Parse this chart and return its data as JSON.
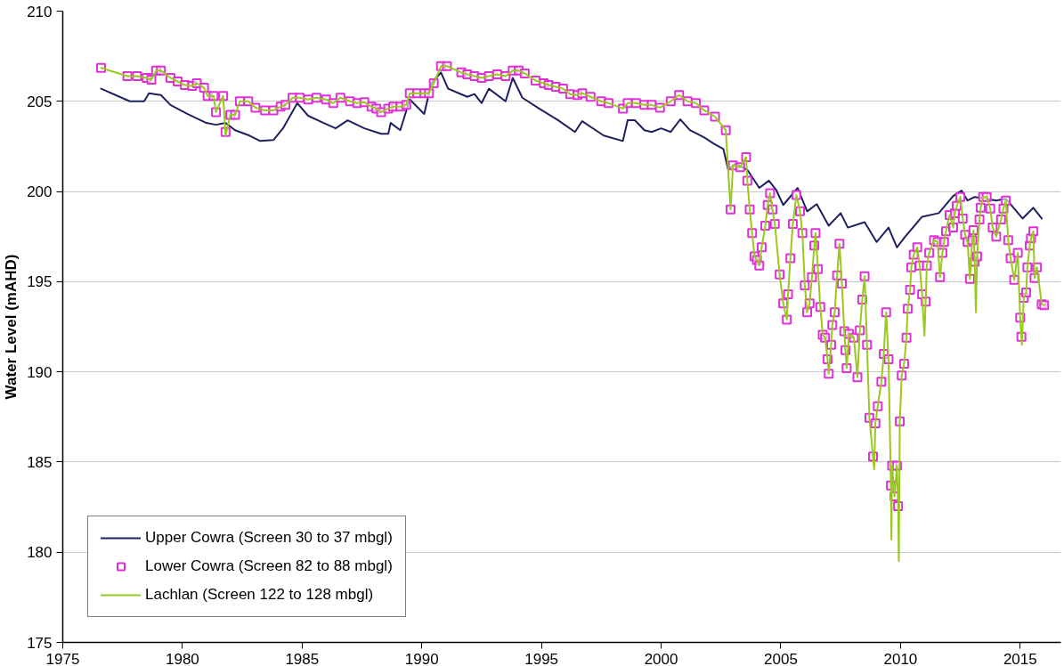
{
  "chart_data": {
    "type": "line",
    "ylabel": "Water Level (mAHD)",
    "xlim": [
      1975,
      2016.7
    ],
    "xticks": [
      1975,
      1980,
      1985,
      1990,
      1995,
      2000,
      2005,
      2010,
      2015
    ],
    "ylim": [
      175,
      210
    ],
    "yticks": [
      175,
      180,
      185,
      190,
      195,
      200,
      205,
      210
    ],
    "grid": "y",
    "legend": "bottom left",
    "series": [
      {
        "name": "Upper Cowra (Screen 30 to 37 mbgl)",
        "color": "#1f2060",
        "marker": "none",
        "x": [
          1976.6,
          1977.8,
          1978.4,
          1978.6,
          1979.1,
          1979.5,
          1980.2,
          1981.0,
          1981.4,
          1981.8,
          1982.2,
          1982.8,
          1983.25,
          1983.8,
          1984.2,
          1984.8,
          1985.25,
          1985.9,
          1986.4,
          1986.9,
          1987.6,
          1988.3,
          1988.6,
          1988.7,
          1989.1,
          1989.5,
          1990.1,
          1990.4,
          1990.8,
          1991.1,
          1991.9,
          1992.2,
          1992.5,
          1992.8,
          1993.5,
          1993.8,
          1994.2,
          1994.9,
          1995.7,
          1996.4,
          1996.7,
          1997.6,
          1998.4,
          1998.6,
          1998.9,
          1999.3,
          1999.6,
          2000.0,
          2000.4,
          2000.8,
          2001.2,
          2001.8,
          2002.2,
          2002.6,
          2002.8,
          2003.1,
          2003.6,
          2004.1,
          2004.5,
          2004.8,
          2005.1,
          2005.7,
          2006.1,
          2006.5,
          2007.0,
          2007.5,
          2007.8,
          2008.5,
          2009.0,
          2009.5,
          2009.85,
          2010.2,
          2010.9,
          2011.6,
          2012.2,
          2012.55,
          2012.8,
          2013.1,
          2014.0,
          2014.4,
          2015.1,
          2015.55,
          2015.9
        ],
        "values": [
          205.7,
          205.0,
          205.0,
          205.45,
          205.35,
          204.8,
          204.3,
          203.8,
          203.7,
          203.8,
          203.4,
          203.1,
          202.8,
          202.85,
          203.5,
          204.9,
          204.2,
          203.8,
          203.5,
          203.95,
          203.5,
          203.2,
          203.2,
          203.8,
          203.4,
          205.1,
          204.3,
          206.0,
          206.6,
          205.7,
          205.25,
          205.4,
          204.9,
          205.7,
          205.0,
          206.3,
          205.2,
          204.6,
          203.95,
          203.3,
          203.9,
          203.1,
          202.8,
          203.95,
          203.95,
          203.4,
          203.3,
          203.5,
          203.3,
          204.0,
          203.4,
          203.0,
          202.65,
          202.35,
          201.2,
          201.55,
          201.2,
          200.2,
          200.6,
          200.1,
          199.25,
          200.2,
          198.9,
          199.3,
          198.1,
          198.8,
          198.0,
          198.3,
          197.2,
          198.0,
          196.9,
          197.5,
          198.6,
          198.8,
          199.75,
          200.05,
          199.5,
          199.7,
          199.5,
          199.6,
          198.5,
          199.1,
          198.5
        ]
      },
      {
        "name": "Lower Cowra (Screen 82 to 88 mbgl)",
        "type": "scatter",
        "color": "#e030d8",
        "marker": "square",
        "x": [
          1976.6,
          1977.7,
          1978.1,
          1978.5,
          1978.7,
          1978.9,
          1979.1,
          1979.5,
          1979.8,
          1980.1,
          1980.4,
          1980.6,
          1980.9,
          1981.05,
          1981.3,
          1981.4,
          1981.7,
          1981.8,
          1982.0,
          1982.2,
          1982.4,
          1982.75,
          1983.05,
          1983.45,
          1983.8,
          1984.1,
          1984.3,
          1984.6,
          1984.9,
          1985.25,
          1985.6,
          1986.0,
          1986.3,
          1986.6,
          1987.0,
          1987.3,
          1987.6,
          1987.9,
          1988.1,
          1988.3,
          1988.6,
          1988.8,
          1989.1,
          1989.35,
          1989.5,
          1989.8,
          1990.1,
          1990.3,
          1990.5,
          1990.8,
          1991.05,
          1991.65,
          1991.9,
          1992.2,
          1992.5,
          1992.8,
          1993.15,
          1993.5,
          1993.8,
          1994.05,
          1994.3,
          1994.75,
          1995.1,
          1995.3,
          1995.6,
          1995.9,
          1996.2,
          1996.5,
          1996.7,
          1997.05,
          1997.5,
          1997.8,
          1998.4,
          1998.6,
          1998.95,
          1999.3,
          1999.6,
          1999.95,
          2000.4,
          2000.75,
          2001.1,
          2001.45,
          2001.8,
          2002.25,
          2002.7,
          2002.9,
          2003.0,
          2003.3,
          2003.55,
          2003.6,
          2003.7,
          2003.8,
          2003.9,
          2004.0,
          2004.1,
          2004.2,
          2004.35,
          2004.45,
          2004.55,
          2004.65,
          2004.75,
          2004.95,
          2005.1,
          2005.25,
          2005.3,
          2005.4,
          2005.5,
          2005.65,
          2005.8,
          2005.9,
          2006.0,
          2006.1,
          2006.2,
          2006.3,
          2006.4,
          2006.45,
          2006.55,
          2006.65,
          2006.75,
          2006.85,
          2006.95,
          2007.0,
          2007.1,
          2007.15,
          2007.25,
          2007.35,
          2007.45,
          2007.55,
          2007.65,
          2007.7,
          2007.75,
          2007.85,
          2008.05,
          2008.2,
          2008.3,
          2008.4,
          2008.5,
          2008.6,
          2008.7,
          2008.85,
          2008.95,
          2009.05,
          2009.2,
          2009.3,
          2009.4,
          2009.5,
          2009.6,
          2009.65,
          2009.75,
          2009.85,
          2009.9,
          2009.97,
          2010.05,
          2010.15,
          2010.25,
          2010.3,
          2010.4,
          2010.45,
          2010.55,
          2010.7,
          2010.8,
          2010.9,
          2011.05,
          2011.1,
          2011.2,
          2011.4,
          2011.55,
          2011.65,
          2011.75,
          2011.82,
          2011.9,
          2012.05,
          2012.2,
          2012.27,
          2012.35,
          2012.5,
          2012.6,
          2012.7,
          2012.8,
          2012.9,
          2013.0,
          2013.05,
          2013.1,
          2013.2,
          2013.3,
          2013.35,
          2013.45,
          2013.6,
          2013.75,
          2013.85,
          2014.0,
          2014.2,
          2014.3,
          2014.4,
          2014.5,
          2014.6,
          2014.75,
          2014.9,
          2015.0,
          2015.05,
          2015.15,
          2015.25,
          2015.3,
          2015.4,
          2015.45,
          2015.55,
          2015.6,
          2015.7,
          2015.9,
          2016.0
        ],
        "values": [
          206.85,
          206.4,
          206.4,
          206.3,
          206.2,
          206.7,
          206.7,
          206.3,
          206.1,
          205.9,
          205.85,
          206.0,
          205.75,
          205.3,
          205.3,
          204.4,
          205.3,
          203.3,
          204.25,
          204.25,
          205.0,
          205.0,
          204.65,
          204.5,
          204.5,
          204.7,
          204.8,
          205.2,
          205.2,
          205.1,
          205.2,
          205.1,
          204.9,
          205.2,
          205.0,
          204.9,
          204.95,
          204.7,
          204.6,
          204.4,
          204.6,
          204.7,
          204.7,
          204.8,
          205.45,
          205.45,
          205.45,
          205.45,
          206.0,
          206.95,
          206.95,
          206.6,
          206.5,
          206.4,
          206.3,
          206.4,
          206.5,
          206.4,
          206.7,
          206.7,
          206.55,
          206.15,
          206.0,
          205.9,
          205.8,
          205.7,
          205.4,
          205.35,
          205.45,
          205.25,
          205.0,
          204.9,
          204.6,
          204.9,
          204.9,
          204.8,
          204.8,
          204.65,
          205.0,
          205.35,
          205.0,
          204.9,
          204.5,
          204.15,
          203.4,
          199.0,
          201.45,
          201.35,
          201.9,
          200.6,
          199.0,
          197.7,
          196.4,
          196.2,
          195.9,
          196.9,
          198.1,
          199.25,
          199.9,
          199.0,
          198.2,
          195.4,
          193.8,
          192.9,
          194.3,
          196.3,
          198.2,
          199.8,
          198.9,
          197.7,
          194.8,
          193.3,
          193.8,
          195.25,
          197.0,
          197.7,
          195.7,
          193.6,
          192.05,
          191.9,
          190.7,
          189.9,
          191.5,
          192.6,
          193.3,
          195.35,
          197.1,
          194.9,
          192.25,
          191.2,
          190.2,
          192.1,
          191.9,
          189.7,
          192.3,
          194.0,
          195.3,
          191.5,
          187.45,
          185.3,
          187.15,
          188.1,
          189.45,
          191.0,
          193.3,
          190.7,
          183.7,
          184.8,
          183.1,
          184.8,
          182.55,
          187.25,
          189.8,
          190.45,
          191.9,
          193.5,
          194.55,
          195.8,
          196.5,
          196.9,
          195.9,
          194.3,
          193.9,
          195.9,
          196.6,
          197.3,
          197.2,
          195.25,
          196.6,
          197.2,
          197.8,
          198.7,
          198.0,
          198.8,
          199.2,
          199.7,
          198.5,
          197.6,
          197.2,
          195.15,
          197.3,
          197.85,
          196.1,
          196.4,
          198.45,
          199.1,
          199.7,
          199.7,
          199.05,
          198.0,
          197.5,
          198.45,
          199.05,
          199.5,
          197.3,
          196.3,
          195.1,
          196.6,
          193.0,
          191.95,
          194.1,
          194.4,
          195.8,
          197.0,
          197.4,
          197.8,
          195.2,
          195.8,
          193.75,
          193.7
        ]
      },
      {
        "name": "Lachlan (Screen 122 to 128 mbgl)",
        "color": "#9ac81e",
        "marker": "none",
        "x": [
          1976.6,
          1977.7,
          1978.1,
          1978.5,
          1978.7,
          1978.9,
          1979.1,
          1979.5,
          1979.8,
          1980.1,
          1980.4,
          1980.6,
          1980.9,
          1981.05,
          1981.3,
          1981.4,
          1981.7,
          1981.8,
          1982.0,
          1982.2,
          1982.4,
          1982.75,
          1983.05,
          1983.45,
          1983.8,
          1984.1,
          1984.3,
          1984.6,
          1984.9,
          1985.25,
          1985.6,
          1986.0,
          1986.3,
          1986.6,
          1987.0,
          1987.3,
          1987.6,
          1987.9,
          1988.1,
          1988.3,
          1988.6,
          1988.8,
          1989.1,
          1989.35,
          1989.5,
          1989.8,
          1990.1,
          1990.3,
          1990.5,
          1990.8,
          1991.05,
          1991.65,
          1991.9,
          1992.2,
          1992.5,
          1992.8,
          1993.15,
          1993.5,
          1993.8,
          1994.05,
          1994.3,
          1994.75,
          1995.1,
          1995.3,
          1995.6,
          1995.9,
          1996.2,
          1996.5,
          1996.7,
          1997.05,
          1997.5,
          1997.8,
          1998.4,
          1998.6,
          1998.95,
          1999.3,
          1999.6,
          1999.95,
          2000.4,
          2000.75,
          2001.1,
          2001.45,
          2001.8,
          2002.25,
          2002.7,
          2002.9,
          2003.0,
          2003.3,
          2003.55,
          2003.6,
          2003.7,
          2003.8,
          2003.9,
          2004.0,
          2004.1,
          2004.2,
          2004.35,
          2004.45,
          2004.55,
          2004.65,
          2004.75,
          2004.95,
          2005.1,
          2005.25,
          2005.3,
          2005.4,
          2005.5,
          2005.65,
          2005.8,
          2005.9,
          2006.0,
          2006.1,
          2006.2,
          2006.3,
          2006.4,
          2006.45,
          2006.55,
          2006.65,
          2006.75,
          2006.85,
          2006.95,
          2007.0,
          2007.1,
          2007.15,
          2007.25,
          2007.35,
          2007.45,
          2007.55,
          2007.65,
          2007.7,
          2007.75,
          2007.85,
          2008.05,
          2008.2,
          2008.3,
          2008.4,
          2008.5,
          2008.6,
          2008.7,
          2008.85,
          2008.9,
          2008.95,
          2009.05,
          2009.2,
          2009.3,
          2009.4,
          2009.5,
          2009.6,
          2009.62,
          2009.65,
          2009.75,
          2009.85,
          2009.9,
          2009.93,
          2009.97,
          2010.05,
          2010.15,
          2010.25,
          2010.3,
          2010.4,
          2010.45,
          2010.55,
          2010.7,
          2010.8,
          2010.9,
          2011.0,
          2011.05,
          2011.1,
          2011.2,
          2011.4,
          2011.55,
          2011.65,
          2011.75,
          2011.82,
          2011.9,
          2012.05,
          2012.2,
          2012.27,
          2012.35,
          2012.5,
          2012.6,
          2012.7,
          2012.8,
          2012.9,
          2013.0,
          2013.05,
          2013.1,
          2013.15,
          2013.2,
          2013.3,
          2013.35,
          2013.45,
          2013.6,
          2013.75,
          2013.85,
          2014.0,
          2014.2,
          2014.3,
          2014.4,
          2014.5,
          2014.6,
          2014.75,
          2014.9,
          2015.0,
          2015.05,
          2015.07,
          2015.15,
          2015.25,
          2015.3,
          2015.4,
          2015.45,
          2015.55,
          2015.6,
          2015.7,
          2015.9,
          2016.0
        ],
        "values": [
          206.85,
          206.4,
          206.4,
          206.3,
          206.2,
          206.7,
          206.7,
          206.3,
          206.1,
          205.9,
          205.85,
          206.0,
          205.75,
          205.3,
          205.3,
          204.4,
          205.3,
          203.1,
          204.25,
          204.25,
          205.0,
          205.0,
          204.65,
          204.5,
          204.5,
          204.7,
          204.8,
          205.2,
          205.2,
          205.1,
          205.2,
          205.1,
          204.9,
          205.2,
          205.0,
          204.9,
          204.95,
          204.7,
          204.6,
          204.4,
          204.6,
          204.7,
          204.7,
          204.8,
          205.45,
          205.45,
          205.45,
          205.45,
          206.0,
          206.95,
          206.95,
          206.6,
          206.5,
          206.4,
          206.3,
          206.4,
          206.5,
          206.4,
          206.7,
          206.7,
          206.55,
          206.15,
          206.0,
          205.9,
          205.8,
          205.7,
          205.4,
          205.35,
          205.45,
          205.25,
          205.0,
          204.9,
          204.6,
          204.9,
          204.9,
          204.8,
          204.8,
          204.65,
          205.0,
          205.35,
          205.0,
          204.9,
          204.5,
          204.15,
          203.4,
          199.0,
          201.45,
          201.35,
          201.9,
          200.6,
          199.0,
          197.7,
          196.4,
          196.2,
          195.9,
          196.9,
          198.1,
          199.25,
          199.9,
          199.0,
          198.2,
          195.4,
          193.8,
          192.9,
          194.3,
          196.3,
          198.2,
          199.8,
          198.9,
          197.7,
          194.8,
          193.3,
          193.8,
          195.25,
          197.0,
          197.7,
          195.7,
          193.6,
          192.05,
          191.9,
          190.7,
          189.9,
          191.5,
          192.6,
          193.3,
          195.35,
          197.1,
          194.9,
          192.25,
          191.2,
          190.2,
          192.1,
          191.9,
          189.7,
          192.3,
          194.0,
          195.3,
          191.5,
          187.45,
          185.3,
          184.6,
          187.15,
          188.1,
          189.45,
          191.0,
          193.3,
          190.7,
          183.7,
          180.7,
          184.8,
          183.1,
          184.8,
          182.55,
          179.5,
          187.25,
          189.8,
          190.45,
          191.9,
          193.5,
          194.55,
          195.8,
          196.5,
          196.9,
          195.9,
          194.3,
          192.0,
          193.9,
          195.9,
          196.6,
          197.3,
          197.2,
          195.25,
          196.6,
          197.2,
          197.8,
          198.7,
          198.0,
          198.8,
          199.2,
          199.7,
          198.5,
          197.6,
          197.2,
          195.15,
          197.3,
          197.85,
          196.1,
          193.3,
          196.4,
          198.45,
          199.1,
          199.7,
          199.7,
          199.05,
          198.0,
          197.5,
          198.45,
          199.05,
          199.5,
          197.3,
          196.3,
          195.1,
          196.6,
          193.0,
          191.95,
          191.5,
          194.1,
          194.4,
          195.8,
          197.0,
          197.4,
          197.8,
          195.2,
          195.8,
          193.75,
          193.7
        ]
      }
    ]
  }
}
